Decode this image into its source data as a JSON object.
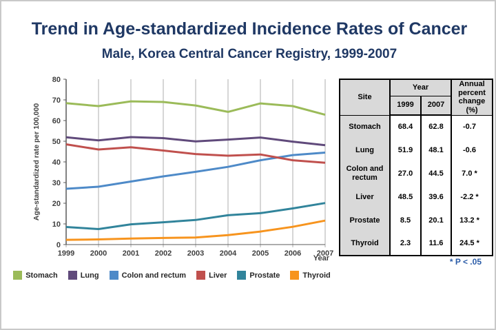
{
  "page": {
    "title": "Trend in Age-standardized Incidence Rates of Cancer",
    "subtitle": "Male, Korea Central Cancer Registry, 1999-2007"
  },
  "chart_data": {
    "type": "line",
    "x": [
      1999,
      2000,
      2001,
      2002,
      2003,
      2004,
      2005,
      2006,
      2007
    ],
    "series": [
      {
        "name": "Stomach",
        "color": "#9BBB59",
        "values": [
          68.4,
          67.0,
          69.3,
          69.0,
          67.3,
          64.2,
          68.3,
          67.0,
          62.8
        ]
      },
      {
        "name": "Lung",
        "color": "#604A7B",
        "values": [
          51.9,
          50.4,
          52.0,
          51.5,
          49.9,
          50.8,
          51.8,
          49.8,
          48.1
        ]
      },
      {
        "name": "Colon and rectum",
        "color": "#4E8AC8",
        "values": [
          27.0,
          28.0,
          30.5,
          33.0,
          35.2,
          37.6,
          40.8,
          43.3,
          44.5
        ]
      },
      {
        "name": "Liver",
        "color": "#C0504D",
        "values": [
          48.5,
          46.0,
          47.1,
          45.5,
          43.8,
          43.0,
          43.6,
          40.8,
          39.6
        ]
      },
      {
        "name": "Prostate",
        "color": "#31849B",
        "values": [
          8.5,
          7.5,
          9.8,
          10.8,
          11.9,
          14.2,
          15.2,
          17.5,
          20.1
        ]
      },
      {
        "name": "Thyroid",
        "color": "#F7941E",
        "values": [
          2.3,
          2.5,
          2.9,
          3.2,
          3.4,
          4.6,
          6.3,
          8.6,
          11.6
        ]
      }
    ],
    "ylabel": "Age-standardized rate per 100,000",
    "xlabel": "Year",
    "ylim": [
      0,
      80
    ],
    "yticks": [
      0,
      10,
      20,
      30,
      40,
      50,
      60,
      70,
      80
    ],
    "grid": "vertical",
    "legend_position": "bottom"
  },
  "table": {
    "header": {
      "site": "Site",
      "year_group": "Year",
      "y1999": "1999",
      "y2007": "2007",
      "apc": "Annual percent change (%)"
    },
    "rows": [
      {
        "site": "Stomach",
        "y1999": "68.4",
        "y2007": "62.8",
        "apc": "-0.7"
      },
      {
        "site": "Lung",
        "y1999": "51.9",
        "y2007": "48.1",
        "apc": "-0.6"
      },
      {
        "site": "Colon and rectum",
        "y1999": "27.0",
        "y2007": "44.5",
        "apc": "7.0 *"
      },
      {
        "site": "Liver",
        "y1999": "48.5",
        "y2007": "39.6",
        "apc": "-2.2 *"
      },
      {
        "site": "Prostate",
        "y1999": "8.5",
        "y2007": "20.1",
        "apc": "13.2 *"
      },
      {
        "site": "Thyroid",
        "y1999": "2.3",
        "y2007": "11.6",
        "apc": "24.5 *"
      }
    ],
    "footnote": "* P < .05"
  },
  "colors": {
    "title_text": "#1F3864",
    "gridline": "#ADADAD",
    "axis": "#595959",
    "table_header_bg": "#D9D9D9",
    "footnote_text": "#2B5CA8"
  }
}
